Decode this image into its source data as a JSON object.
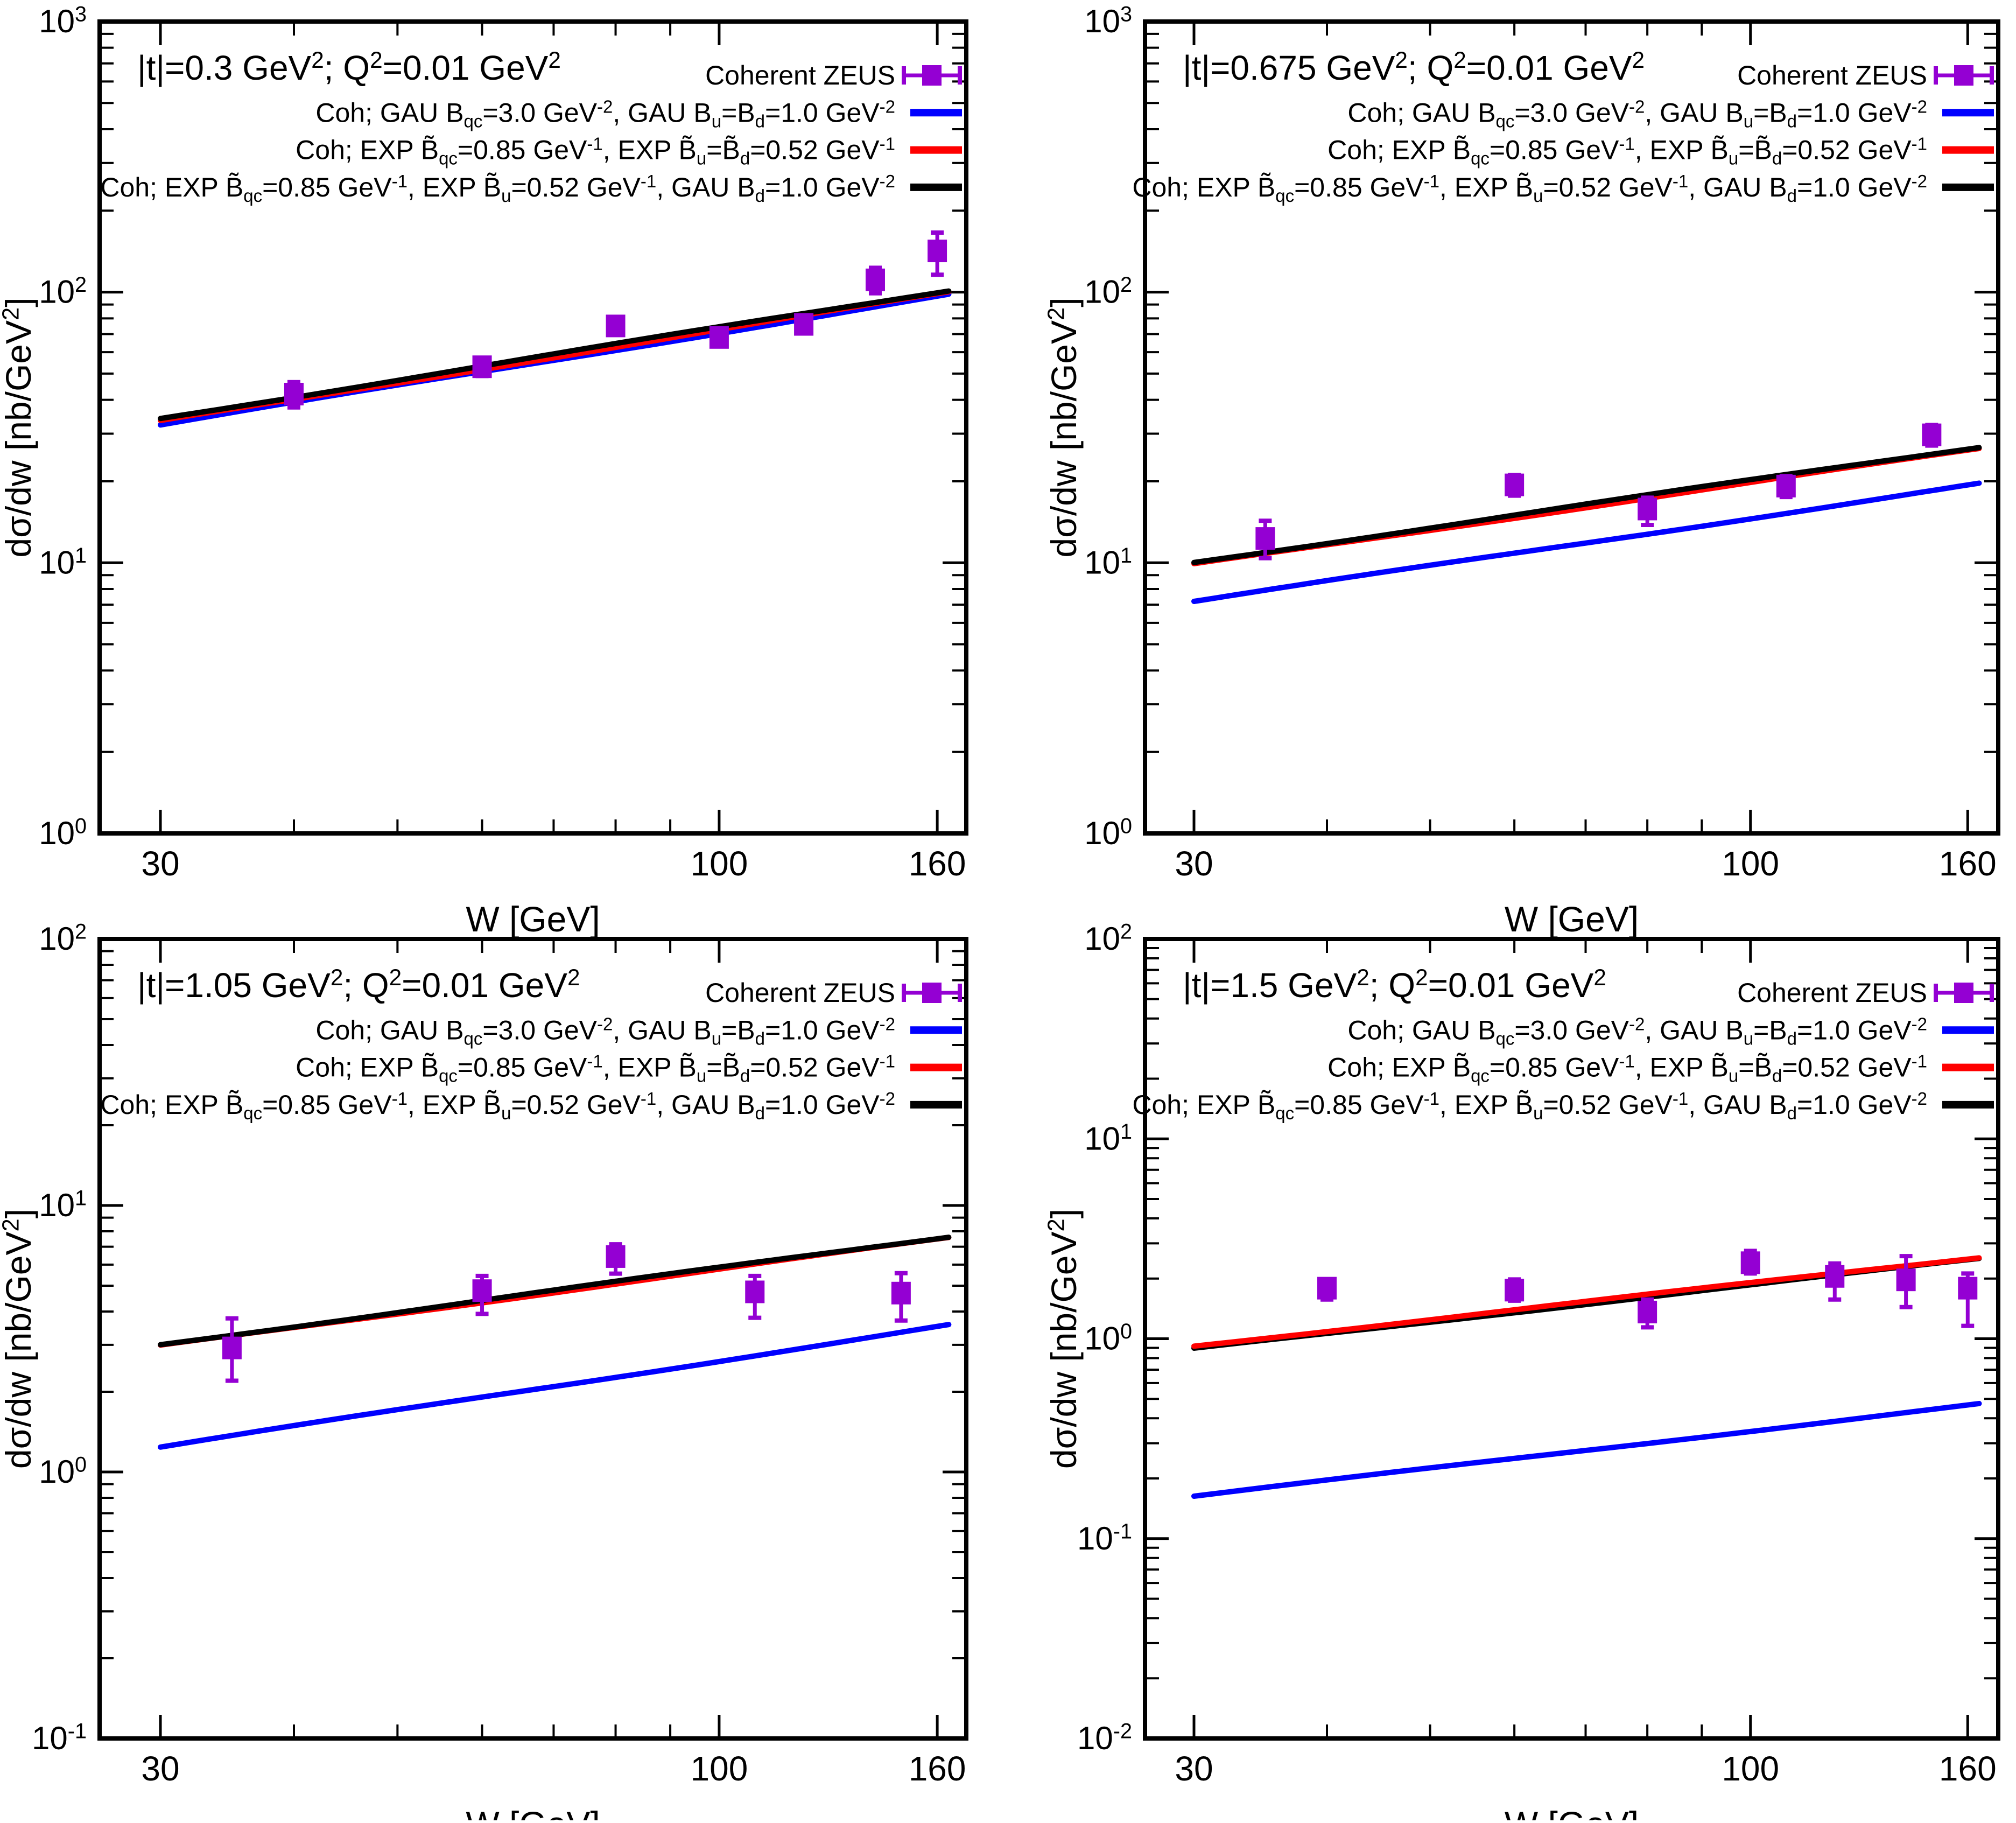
{
  "figure": {
    "background": "#ffffff",
    "frame_color": "#000000",
    "data_marker_color": "#9400d3"
  },
  "axis": {
    "xlabel": "W [GeV]",
    "ylabel": "dσ/dw [nb/GeV^2^]",
    "x_major_ticks": [
      30,
      100,
      160
    ],
    "x_tick_labels": [
      "30",
      "100",
      "160"
    ],
    "x_minor_ticks": [
      40,
      50,
      60,
      70,
      80,
      90
    ]
  },
  "legend": {
    "data_label": "Coherent ZEUS",
    "entries": [
      {
        "label": "Coh; GAU B_qc_=3.0 GeV^-2^, GAU B_u_=B_d_=1.0 GeV^-2^",
        "color": "#0000ff"
      },
      {
        "label": "Coh; EXP B̃_qc_=0.85 GeV^-1^, EXP B̃_u_=B̃_d_=0.52 GeV^-1^",
        "color": "#ff0000"
      },
      {
        "label": "Coh; EXP B̃_qc_=0.85 GeV^-1^, EXP B̃_u_=0.52 GeV^-1^, GAU B_d_=1.0 GeV^-2^",
        "color": "#000000"
      }
    ]
  },
  "chart_data": [
    {
      "type": "line",
      "title": "|t|=0.3 GeV^2^; Q^2^=0.01 GeV^2^",
      "x_range": [
        26.4,
        170
      ],
      "curve_w_range": [
        30,
        164
      ],
      "y_decade_exponents": [
        0,
        1,
        2,
        3
      ],
      "zeus_points": {
        "W": [
          40,
          60,
          80,
          100,
          120,
          140,
          160
        ],
        "y": [
          42,
          53,
          75,
          68,
          76,
          111,
          142
        ],
        "err_up": [
          4.5,
          4,
          5,
          5,
          5,
          12,
          24
        ],
        "err_dn": [
          4.5,
          4,
          5,
          5,
          5,
          12,
          26
        ]
      },
      "curves": [
        {
          "series": "blue",
          "color": "#0000ff",
          "y_at_W30": 32.3,
          "y_at_W164": 98.5,
          "exponent": 0.652
        },
        {
          "series": "red",
          "color": "#ff0000",
          "y_at_W30": 33.3,
          "y_at_W164": 99.8,
          "exponent": 0.646
        },
        {
          "series": "black",
          "color": "#000000",
          "y_at_W30": 34.2,
          "y_at_W164": 101.0,
          "exponent": 0.641
        }
      ]
    },
    {
      "type": "line",
      "title": "|t|=0.675 GeV^2^; Q^2^=0.01 GeV^2^",
      "x_range": [
        26.4,
        170
      ],
      "curve_w_range": [
        30,
        164
      ],
      "y_decade_exponents": [
        0,
        1,
        2,
        3
      ],
      "zeus_points": {
        "W": [
          35,
          60,
          80,
          108,
          148
        ],
        "y": [
          12.3,
          19.4,
          15.8,
          19.2,
          29.7
        ],
        "err_up": [
          2.0,
          1.7,
          1.6,
          1.7,
          2.6
        ],
        "err_dn": [
          1.9,
          1.7,
          2.0,
          1.7,
          2.6
        ]
      },
      "curves": [
        {
          "series": "blue",
          "color": "#0000ff",
          "y_at_W30": 7.2,
          "y_at_W164": 19.6,
          "exponent": 0.589
        },
        {
          "series": "red",
          "color": "#ff0000",
          "y_at_W30": 9.85,
          "y_at_W164": 26.4,
          "exponent": 0.578
        },
        {
          "series": "black",
          "color": "#000000",
          "y_at_W30": 10.05,
          "y_at_W164": 26.8,
          "exponent": 0.578
        }
      ]
    },
    {
      "type": "line",
      "title": "|t|=1.05 GeV^2^; Q^2^=0.01 GeV^2^",
      "x_range": [
        26.4,
        170
      ],
      "curve_w_range": [
        30,
        164
      ],
      "y_decade_exponents": [
        -1,
        0,
        1,
        2
      ],
      "zeus_points": {
        "W": [
          35,
          60,
          80,
          108,
          148
        ],
        "y": [
          2.92,
          4.79,
          6.43,
          4.74,
          4.69
        ],
        "err_up": [
          0.85,
          0.65,
          0.72,
          0.7,
          0.88
        ],
        "err_dn": [
          0.72,
          0.87,
          0.88,
          0.95,
          0.99
        ]
      },
      "curves": [
        {
          "series": "blue",
          "color": "#0000ff",
          "y_at_W30": 1.24,
          "y_at_W164": 3.55,
          "exponent": 0.62
        },
        {
          "series": "red",
          "color": "#ff0000",
          "y_at_W30": 2.97,
          "y_at_W164": 7.55,
          "exponent": 0.549
        },
        {
          "series": "black",
          "color": "#000000",
          "y_at_W30": 3.01,
          "y_at_W164": 7.65,
          "exponent": 0.549
        }
      ]
    },
    {
      "type": "line",
      "title": "|t|=1.5 GeV^2^; Q^2^=0.01 GeV^2^",
      "x_range": [
        26.4,
        170
      ],
      "curve_w_range": [
        30,
        164
      ],
      "y_decade_exponents": [
        -2,
        -1,
        0,
        1,
        2
      ],
      "zeus_points": {
        "W": [
          40,
          60,
          80,
          100,
          120,
          140,
          160
        ],
        "y": [
          1.79,
          1.75,
          1.36,
          2.4,
          2.05,
          1.97,
          1.79
        ],
        "err_up": [
          0.19,
          0.23,
          0.21,
          0.35,
          0.33,
          0.62,
          0.33
        ],
        "err_dn": [
          0.22,
          0.2,
          0.22,
          0.28,
          0.48,
          0.53,
          0.63
        ]
      },
      "curves": [
        {
          "series": "blue",
          "color": "#0000ff",
          "y_at_W30": 0.163,
          "y_at_W164": 0.47,
          "exponent": 0.625
        },
        {
          "series": "black",
          "color": "#000000",
          "y_at_W30": 0.89,
          "y_at_W164": 2.51,
          "exponent": 0.61
        },
        {
          "series": "red",
          "color": "#ff0000",
          "y_at_W30": 0.92,
          "y_at_W164": 2.55,
          "exponent": 0.601
        }
      ]
    }
  ]
}
